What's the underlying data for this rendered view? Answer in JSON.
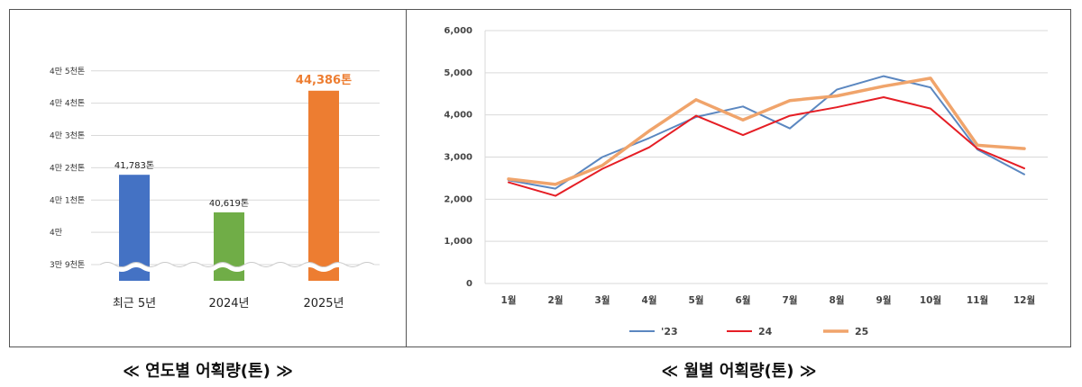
{
  "chart_data": [
    {
      "type": "bar",
      "title": "≪ 연도별 어획량(톤) ≫",
      "categories": [
        "최근 5년",
        "2024년",
        "2025년"
      ],
      "values": [
        41783,
        40619,
        44386
      ],
      "value_labels": [
        "41,783톤",
        "40,619톤",
        "44,386톤"
      ],
      "colors": [
        "#4472C4",
        "#70AD47",
        "#ED7D31"
      ],
      "label_colors": [
        "#222222",
        "#222222",
        "#ED7D31"
      ],
      "y_ticks": [
        {
          "value": 39000,
          "label": "3만 9천톤"
        },
        {
          "value": 40000,
          "label": "4만"
        },
        {
          "value": 41000,
          "label": "4만 1천톤"
        },
        {
          "value": 42000,
          "label": "4만 2천톤"
        },
        {
          "value": 43000,
          "label": "4만 3천톤"
        },
        {
          "value": 44000,
          "label": "4만 4천톤"
        },
        {
          "value": 45000,
          "label": "4만 5천톤"
        }
      ],
      "ylim": [
        38500,
        45300
      ],
      "axis_break": true,
      "grid": true
    },
    {
      "type": "line",
      "title": "≪ 월별 어획량(톤) ≫",
      "categories": [
        "1월",
        "2월",
        "3월",
        "4월",
        "5월",
        "6월",
        "7월",
        "8월",
        "9월",
        "10월",
        "11월",
        "12월"
      ],
      "ylim": [
        0,
        6000
      ],
      "y_ticks": [
        0,
        1000,
        2000,
        3000,
        4000,
        5000,
        6000
      ],
      "y_tick_labels": [
        "0",
        "1,000",
        "2,000",
        "3,000",
        "4,000",
        "5,000",
        "6,000"
      ],
      "grid": true,
      "legend_position": "bottom",
      "series": [
        {
          "name": "'23",
          "color": "#5B87C0",
          "width": 2,
          "values": [
            2450,
            2250,
            3000,
            3450,
            3950,
            4200,
            3680,
            4600,
            4920,
            4650,
            3180,
            2590
          ]
        },
        {
          "name": "24",
          "color": "#E51E25",
          "width": 2,
          "values": [
            2400,
            2080,
            2720,
            3230,
            3980,
            3520,
            3980,
            4180,
            4420,
            4150,
            3200,
            2730
          ]
        },
        {
          "name": "25",
          "color": "#F0A46B",
          "width": 3.5,
          "values": [
            2480,
            2350,
            2800,
            3620,
            4360,
            3880,
            4340,
            4450,
            4680,
            4870,
            3280,
            3200
          ]
        }
      ]
    }
  ]
}
